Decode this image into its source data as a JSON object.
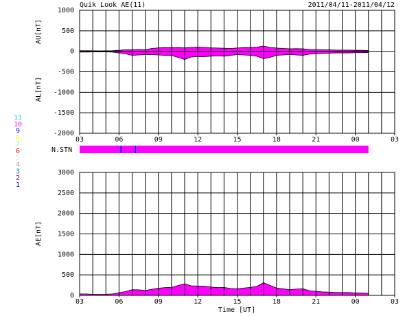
{
  "header": {
    "title": "Quik Look AE(11)",
    "date_range": "2011/04/11-2011/04/12"
  },
  "chart_data": [
    {
      "type": "area",
      "ylabels": [
        "AU[nT]",
        "AL[nT]"
      ],
      "x": [
        3,
        3.5,
        4,
        4.5,
        5,
        5.5,
        6,
        6.5,
        7,
        7.5,
        8,
        8.5,
        9,
        9.5,
        10,
        10.5,
        11,
        11.5,
        12,
        12.5,
        13,
        13.5,
        14,
        14.5,
        15,
        15.5,
        16,
        16.5,
        17,
        17.5,
        18,
        18.5,
        19,
        19.5,
        20,
        20.5,
        21,
        21.5,
        22,
        22.5,
        23,
        23.5,
        24,
        24.5,
        25
      ],
      "series": [
        {
          "name": "AU",
          "color": "#ff00ff",
          "values": [
            15,
            15,
            12,
            10,
            12,
            15,
            25,
            35,
            40,
            45,
            40,
            70,
            85,
            90,
            95,
            90,
            85,
            95,
            100,
            95,
            85,
            80,
            75,
            70,
            80,
            90,
            95,
            100,
            130,
            95,
            80,
            70,
            60,
            65,
            60,
            45,
            40,
            35,
            35,
            30,
            30,
            30,
            25,
            25,
            20
          ]
        },
        {
          "name": "AL",
          "color": "#ff00ff",
          "values": [
            -20,
            -20,
            -15,
            -15,
            -15,
            -20,
            -40,
            -60,
            -100,
            -90,
            -80,
            -80,
            -90,
            -100,
            -100,
            -150,
            -200,
            -140,
            -130,
            -130,
            -120,
            -110,
            -120,
            -100,
            -80,
            -90,
            -100,
            -120,
            -180,
            -150,
            -100,
            -90,
            -80,
            -90,
            -100,
            -70,
            -60,
            -50,
            -45,
            -40,
            -40,
            -40,
            -35,
            -35,
            -30
          ]
        }
      ],
      "xlim": [
        3,
        27
      ],
      "xticks": [
        {
          "value": 3,
          "label": "03"
        },
        {
          "value": 6,
          "label": "06"
        },
        {
          "value": 9,
          "label": "09"
        },
        12,
        15,
        18,
        21,
        {
          "value": 24,
          "label": "00"
        },
        {
          "value": 27,
          "label": "03"
        }
      ],
      "ylim": [
        -2000,
        1000
      ],
      "yticks": [
        1000,
        500,
        0,
        -500,
        -1000,
        -1500,
        -2000
      ],
      "grid": true
    },
    {
      "type": "area",
      "ylabel": "AE[nT]",
      "xlabel": "Time [UT]",
      "x": [
        3,
        3.5,
        4,
        4.5,
        5,
        5.5,
        6,
        6.5,
        7,
        7.5,
        8,
        8.5,
        9,
        9.5,
        10,
        10.5,
        11,
        11.5,
        12,
        12.5,
        13,
        13.5,
        14,
        14.5,
        15,
        15.5,
        16,
        16.5,
        17,
        17.5,
        18,
        18.5,
        19,
        19.5,
        20,
        20.5,
        21,
        21.5,
        22,
        22.5,
        23,
        23.5,
        24,
        24.5,
        25
      ],
      "series": [
        {
          "name": "AE",
          "color": "#ff00ff",
          "values": [
            35,
            35,
            27,
            25,
            27,
            35,
            65,
            95,
            140,
            135,
            120,
            150,
            175,
            190,
            195,
            240,
            285,
            235,
            230,
            225,
            205,
            190,
            195,
            170,
            160,
            180,
            195,
            220,
            310,
            245,
            180,
            160,
            140,
            155,
            160,
            115,
            100,
            85,
            80,
            70,
            70,
            70,
            60,
            60,
            50
          ]
        }
      ],
      "xlim": [
        3,
        27
      ],
      "xticks": [
        {
          "value": 3,
          "label": "03"
        },
        {
          "value": 6,
          "label": "06"
        },
        {
          "value": 9,
          "label": "09"
        },
        12,
        15,
        18,
        21,
        {
          "value": 24,
          "label": "00"
        },
        {
          "value": 27,
          "label": "03"
        }
      ],
      "ylim": [
        0,
        3000
      ],
      "yticks": [
        3000,
        2500,
        2000,
        1500,
        1000,
        500,
        0
      ],
      "grid": true
    }
  ],
  "station_count": {
    "label": "N.STN",
    "bins": [
      3,
      6.1,
      6.2,
      7.2,
      7.3,
      25
    ],
    "values": [
      10,
      9,
      10,
      9,
      10
    ],
    "levels": [
      {
        "label": "11",
        "color": "#00e0ff"
      },
      {
        "label": "10",
        "color": "#ff00ff"
      },
      {
        "label": "9",
        "color": "#0000ff"
      },
      {
        "label": "8",
        "color": "#ffff00"
      },
      {
        "label": "7",
        "color": "#80ff80"
      },
      {
        "label": "6",
        "color": "#ff0000"
      },
      {
        "label": "5",
        "color": "#e0e0e0"
      },
      {
        "label": "4",
        "color": "#a0a0a0"
      },
      {
        "label": "3",
        "color": "#00a0a0"
      },
      {
        "label": "2",
        "color": "#a000a0"
      },
      {
        "label": "1",
        "color": "#0000c0"
      }
    ]
  }
}
